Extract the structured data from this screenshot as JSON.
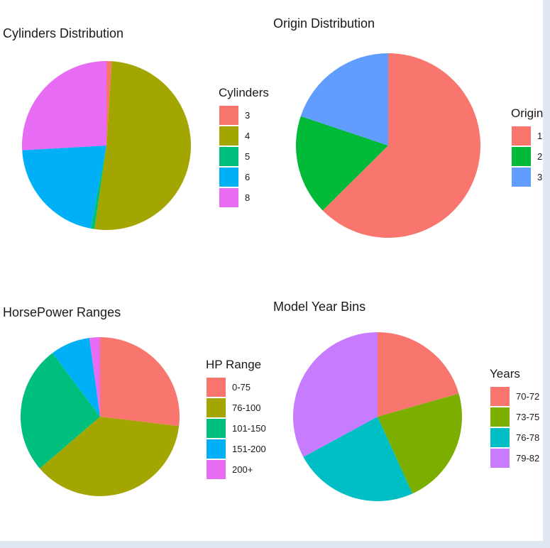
{
  "chart_data": [
    {
      "type": "pie",
      "title": "Cylinders Distribution",
      "legend_title": "Cylinders",
      "categories": [
        "3",
        "4",
        "5",
        "6",
        "8"
      ],
      "values": [
        4,
        204,
        3,
        84,
        103
      ],
      "colors": [
        "#F8766D",
        "#A3A500",
        "#00BF7D",
        "#00B0F6",
        "#E76BF3"
      ],
      "legend": "right"
    },
    {
      "type": "pie",
      "title": "Origin Distribution",
      "legend_title": "Origin",
      "categories": [
        "1",
        "2",
        "3"
      ],
      "values": [
        249,
        70,
        79
      ],
      "colors": [
        "#F8766D",
        "#00BA38",
        "#619CFF"
      ],
      "legend": "right"
    },
    {
      "type": "pie",
      "title": "HorsePower Ranges",
      "legend_title": "HP Range",
      "categories": [
        "0-75",
        "76-100",
        "101-150",
        "151-200",
        "200+"
      ],
      "values": [
        100,
        137,
        97,
        30,
        8
      ],
      "colors": [
        "#F8766D",
        "#A3A500",
        "#00BF7D",
        "#00B0F6",
        "#E76BF3"
      ],
      "legend": "right"
    },
    {
      "type": "pie",
      "title": "Model Year Bins",
      "legend_title": "Years",
      "categories": [
        "70-72",
        "73-75",
        "76-78",
        "79-82"
      ],
      "values": [
        82,
        90,
        95,
        131
      ],
      "colors": [
        "#F8766D",
        "#7CAE00",
        "#00BFC4",
        "#C77CFF"
      ],
      "legend": "right"
    }
  ]
}
